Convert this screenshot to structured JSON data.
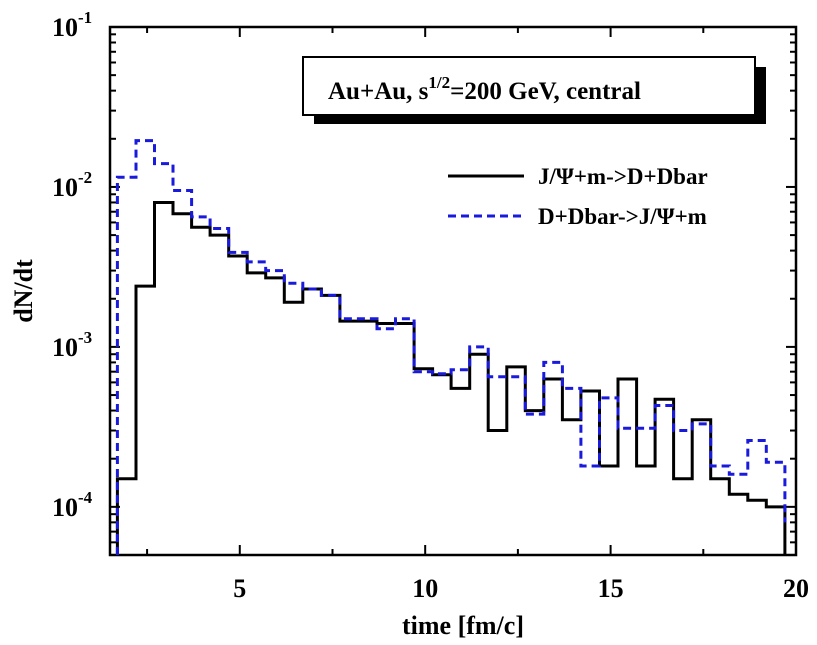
{
  "chart_data": {
    "type": "line",
    "style": "step histogram",
    "xlabel": "time [fm/c]",
    "ylabel": "dN/dt",
    "yscale": "log",
    "xlim": [
      1.5,
      20
    ],
    "ylim": [
      5e-05,
      0.1
    ],
    "xticks": [
      {
        "value": 5,
        "label": "5"
      },
      {
        "value": 10,
        "label": "10"
      },
      {
        "value": 15,
        "label": "15"
      },
      {
        "value": 20,
        "label": "20"
      }
    ],
    "yticks": [
      {
        "value": 0.0001,
        "base": "10",
        "exp": "-4"
      },
      {
        "value": 0.001,
        "base": "10",
        "exp": "-3"
      },
      {
        "value": 0.01,
        "base": "10",
        "exp": "-2"
      },
      {
        "value": 0.1,
        "base": "10",
        "exp": "-1"
      }
    ],
    "annotation": {
      "prefix": "Au+Au,  s",
      "sup": "1/2",
      "suffix": "=200 GeV, central"
    },
    "bin_edges": [
      1.7,
      2.2,
      2.7,
      3.2,
      3.7,
      4.2,
      4.7,
      5.2,
      5.7,
      6.2,
      6.7,
      7.2,
      7.7,
      8.2,
      8.7,
      9.2,
      9.7,
      10.2,
      10.7,
      11.2,
      11.7,
      12.2,
      12.7,
      13.2,
      13.7,
      14.2,
      14.7,
      15.2,
      15.7,
      16.2,
      16.7,
      17.2,
      17.7,
      18.2,
      18.7,
      19.2,
      19.7
    ],
    "series": [
      {
        "name": "J/Ψ+m->D+Dbar",
        "color": "#000000",
        "dash": "solid",
        "start_y": 5e-05,
        "values": [
          0.00015,
          0.0024,
          0.008,
          0.0068,
          0.0056,
          0.005,
          0.0037,
          0.0029,
          0.0027,
          0.0019,
          0.0023,
          0.0021,
          0.00145,
          0.00145,
          0.0014,
          0.0014,
          0.00073,
          0.00067,
          0.00055,
          0.0009,
          0.0003,
          0.00075,
          0.0004,
          0.00063,
          0.00035,
          0.00053,
          0.00018,
          0.00063,
          0.00018,
          0.00047,
          0.00015,
          0.00035,
          0.00015,
          0.00012,
          0.00011,
          0.0001,
          5e-05
        ]
      },
      {
        "name": "D+Dbar->J/Ψ+m",
        "color": "#1a1adc",
        "dash": "dashed",
        "start_y": 5e-05,
        "values": [
          0.0115,
          0.0195,
          0.014,
          0.0095,
          0.0065,
          0.0055,
          0.0039,
          0.0034,
          0.003,
          0.0025,
          0.0023,
          0.0021,
          0.0015,
          0.0015,
          0.0013,
          0.0015,
          0.0007,
          0.00068,
          0.00072,
          0.001,
          0.00065,
          0.00065,
          0.00038,
          0.0008,
          0.00055,
          0.00018,
          0.00048,
          0.00031,
          0.00031,
          0.00043,
          0.0003,
          0.00033,
          0.00018,
          0.00016,
          0.00026,
          0.00019,
          8e-05
        ]
      }
    ],
    "legend": {
      "position": "top-right"
    }
  }
}
